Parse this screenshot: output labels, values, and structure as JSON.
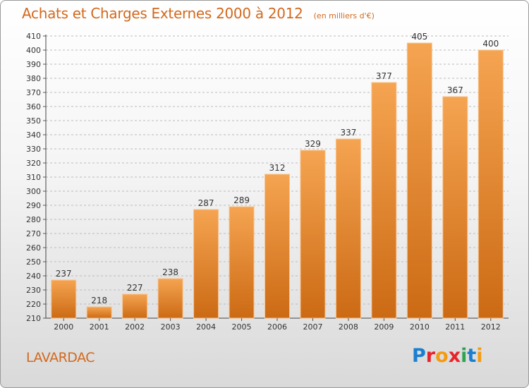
{
  "title": "Achats et Charges Externes 2000 à 2012",
  "subtitle": "(en milliers d'€)",
  "location": "LAVARDAC",
  "brand": {
    "text": "Proxiti",
    "letter_colors": [
      "#1a7fd0",
      "#e8242b",
      "#f39c12",
      "#e8242b",
      "#2ea44f",
      "#1a7fd0",
      "#f39c12"
    ]
  },
  "colors": {
    "bar_top": "#f5a451",
    "bar_bottom": "#cc6a14",
    "text_accent": "#d2691e",
    "grid": "#bbbbbb"
  },
  "chart_data": {
    "type": "bar",
    "title": "Achats et Charges Externes 2000 à 2012",
    "subtitle": "(en milliers d'€)",
    "categories": [
      "2000",
      "2001",
      "2002",
      "2003",
      "2004",
      "2005",
      "2006",
      "2007",
      "2008",
      "2009",
      "2010",
      "2011",
      "2012"
    ],
    "values": [
      237,
      218,
      227,
      238,
      287,
      289,
      312,
      329,
      337,
      377,
      405,
      367,
      400
    ],
    "ylim": [
      210,
      410
    ],
    "yticks": [
      210,
      220,
      230,
      240,
      250,
      260,
      270,
      280,
      290,
      300,
      310,
      320,
      330,
      340,
      350,
      360,
      370,
      380,
      390,
      400,
      410
    ],
    "grid": true,
    "data_labels": true
  }
}
